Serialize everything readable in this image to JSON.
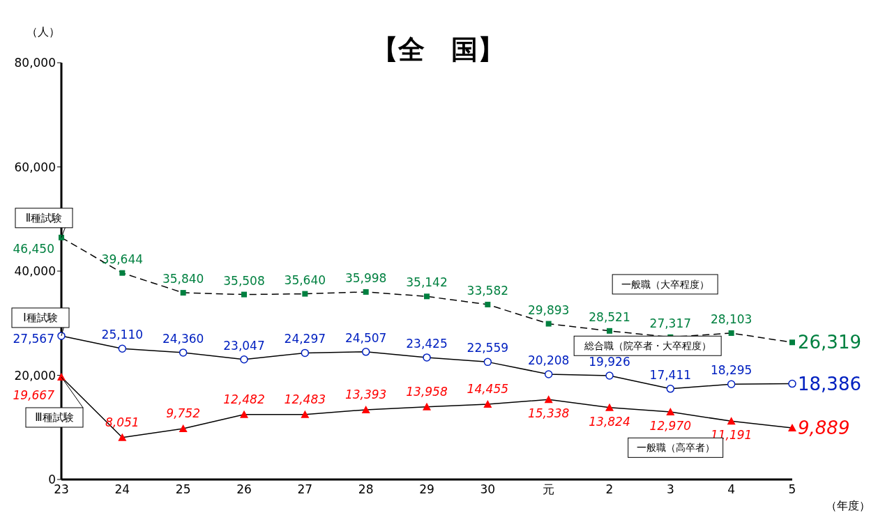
{
  "chart_data": {
    "type": "line",
    "title": "【全　国】",
    "ylabel": "（人）",
    "xlabel": "（年度）",
    "categories": [
      "23",
      "24",
      "25",
      "26",
      "27",
      "28",
      "29",
      "30",
      "元",
      "2",
      "3",
      "4",
      "5"
    ],
    "ylim": [
      0,
      80000
    ],
    "yticks": [
      {
        "value": 0,
        "label": "0"
      },
      {
        "value": 20000,
        "label": "20,000"
      },
      {
        "value": 40000,
        "label": "40,000"
      },
      {
        "value": 60000,
        "label": "60,000"
      },
      {
        "value": 80000,
        "label": "80,000"
      }
    ],
    "grid": false,
    "legend": false,
    "series": [
      {
        "name": "一般職（大卒程度）",
        "color": "#008040",
        "marker": "square",
        "line_style": "dashed",
        "values": [
          46450,
          39644,
          35840,
          35508,
          35640,
          35998,
          35142,
          33582,
          29893,
          28521,
          27317,
          28103,
          26319
        ],
        "value_labels": [
          "46,450",
          "39,644",
          "35,840",
          "35,508",
          "35,640",
          "35,998",
          "35,142",
          "33,582",
          "29,893",
          "28,521",
          "27,317",
          "28,103",
          "26,319"
        ]
      },
      {
        "name": "総合職（院卒者・大卒程度）",
        "color": "#0020c0",
        "marker": "circle",
        "line_style": "solid",
        "values": [
          27567,
          25110,
          24360,
          23047,
          24297,
          24507,
          23425,
          22559,
          20208,
          19926,
          17411,
          18295,
          18386
        ],
        "value_labels": [
          "27,567",
          "25,110",
          "24,360",
          "23,047",
          "24,297",
          "24,507",
          "23,425",
          "22,559",
          "20,208",
          "19,926",
          "17,411",
          "18,295",
          "18,386"
        ]
      },
      {
        "name": "一般職（高卒者）",
        "color": "#ff0000",
        "marker": "triangle",
        "line_style": "solid",
        "values": [
          19667,
          8051,
          9752,
          12482,
          12483,
          13393,
          13958,
          14455,
          15338,
          13824,
          12970,
          11191,
          9889
        ],
        "value_labels": [
          "19,667",
          "8,051",
          "9,752",
          "12,482",
          "12,483",
          "13,393",
          "13,958",
          "14,455",
          "15,338",
          "13,824",
          "12,970",
          "11,191",
          "9,889"
        ]
      }
    ],
    "annotations": [
      {
        "text": "Ⅱ種試験",
        "x": "23",
        "y": 46450
      },
      {
        "text": "Ⅰ種試験",
        "x": "23",
        "y": 27567
      },
      {
        "text": "Ⅲ種試験",
        "x": "23",
        "y": 19667
      }
    ]
  }
}
